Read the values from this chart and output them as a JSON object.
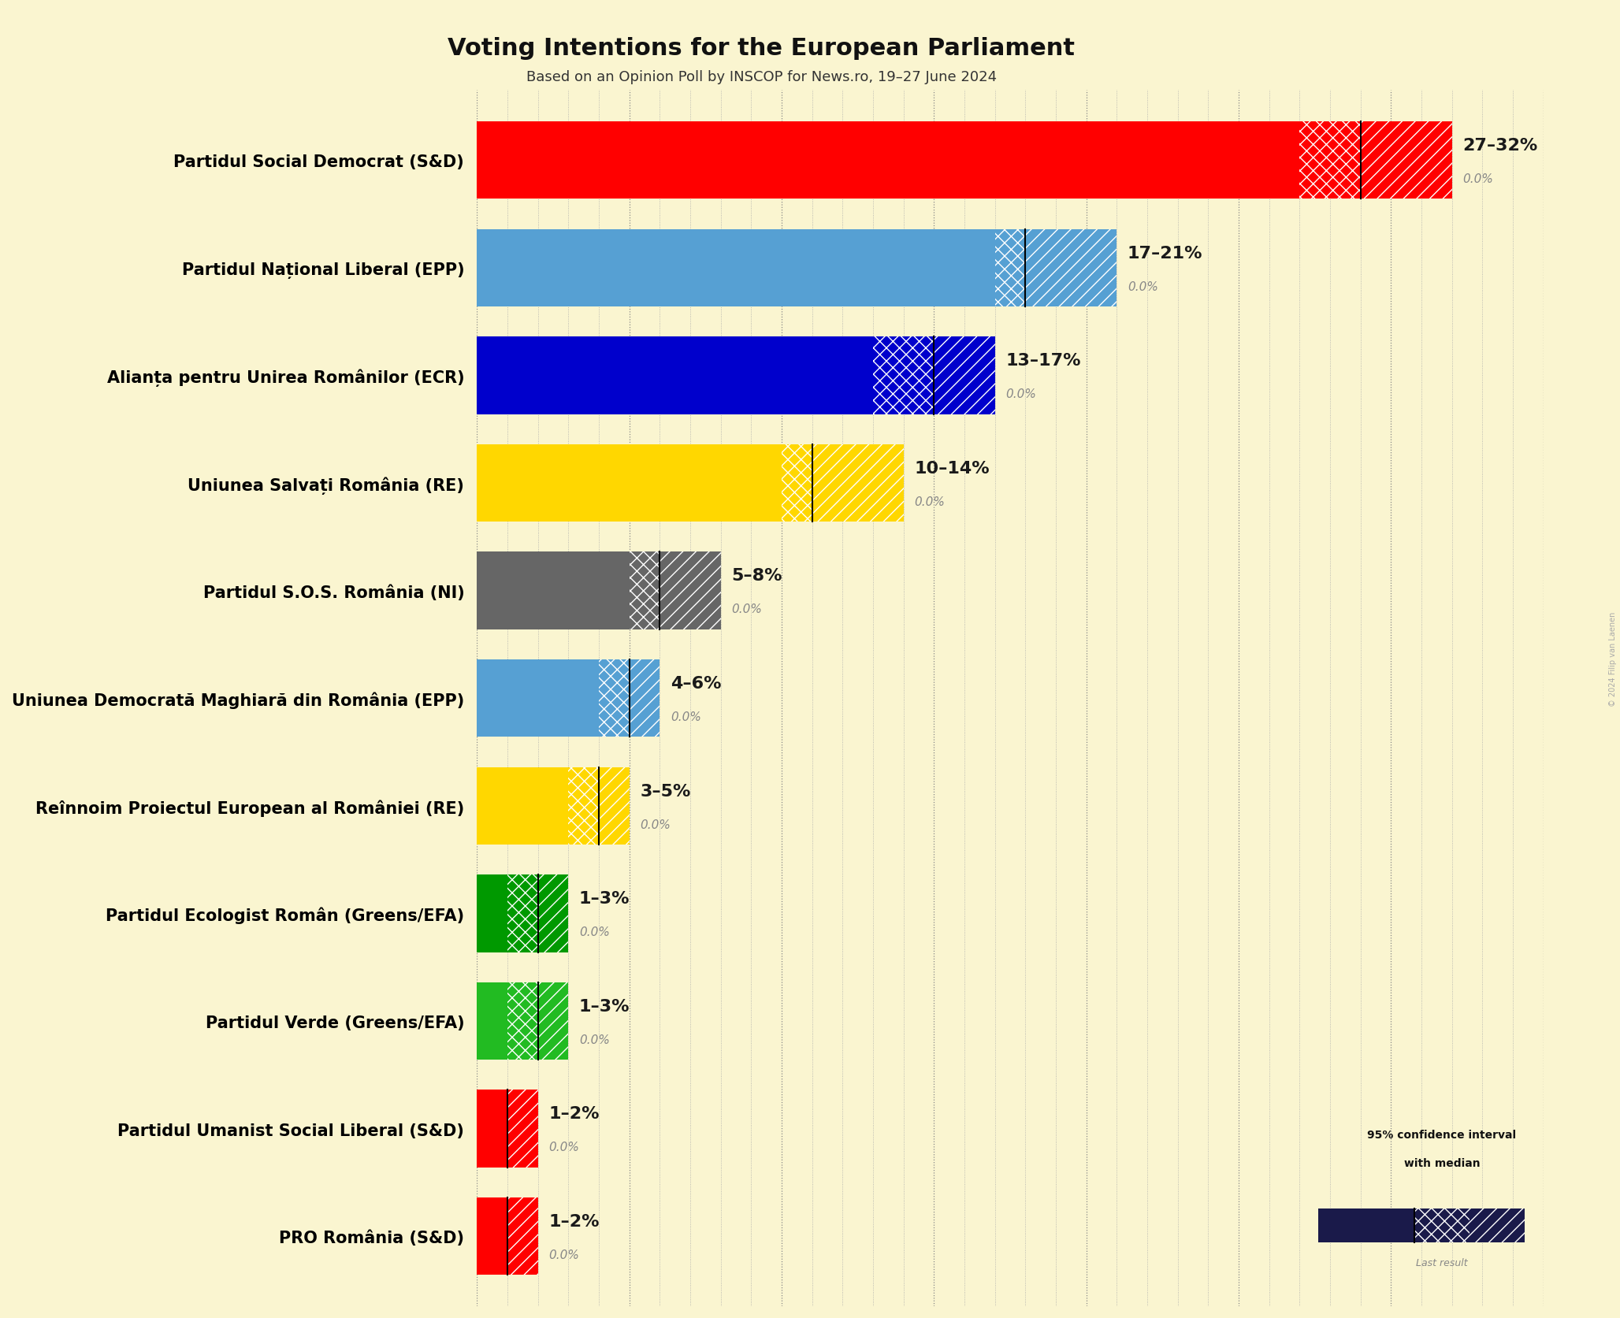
{
  "title": "Voting Intentions for the European Parliament",
  "subtitle": "Based on an Opinion Poll by INSCOP for News.ro, 19–27 June 2024",
  "watermark": "© 2024 Filip van Laenen",
  "background_color": "#FAF5D0",
  "parties": [
    {
      "name": "Partidul Social Democrat (S&D)",
      "low": 27,
      "median": 29,
      "high": 32,
      "last": 0.0,
      "color": "#FF0000"
    },
    {
      "name": "Partidul Național Liberal (EPP)",
      "low": 17,
      "median": 18,
      "high": 21,
      "last": 0.0,
      "color": "#56A0D3"
    },
    {
      "name": "Alianța pentru Unirea Românilor (ECR)",
      "low": 13,
      "median": 15,
      "high": 17,
      "last": 0.0,
      "color": "#0000CC"
    },
    {
      "name": "Uniunea Salvați România (RE)",
      "low": 10,
      "median": 11,
      "high": 14,
      "last": 0.0,
      "color": "#FFD700"
    },
    {
      "name": "Partidul S.O.S. România (NI)",
      "low": 5,
      "median": 6,
      "high": 8,
      "last": 0.0,
      "color": "#666666"
    },
    {
      "name": "Uniunea Democrată Maghiară din România (EPP)",
      "low": 4,
      "median": 5,
      "high": 6,
      "last": 0.0,
      "color": "#56A0D3"
    },
    {
      "name": "Reînnoim Proiectul European al României (RE)",
      "low": 3,
      "median": 4,
      "high": 5,
      "last": 0.0,
      "color": "#FFD700"
    },
    {
      "name": "Partidul Ecologist Român (Greens/EFA)",
      "low": 1,
      "median": 2,
      "high": 3,
      "last": 0.0,
      "color": "#009900"
    },
    {
      "name": "Partidul Verde (Greens/EFA)",
      "low": 1,
      "median": 2,
      "high": 3,
      "last": 0.0,
      "color": "#22BB22"
    },
    {
      "name": "Partidul Umanist Social Liberal (S&D)",
      "low": 1,
      "median": 1,
      "high": 2,
      "last": 0.0,
      "color": "#FF0000"
    },
    {
      "name": "PRO România (S&D)",
      "low": 1,
      "median": 1,
      "high": 2,
      "last": 0.0,
      "color": "#FF0000"
    }
  ],
  "xlim": [
    0,
    35
  ],
  "bar_height": 0.72,
  "label_fontsize": 15,
  "title_fontsize": 22,
  "subtitle_fontsize": 13,
  "range_fontsize": 16,
  "last_fontsize": 11
}
